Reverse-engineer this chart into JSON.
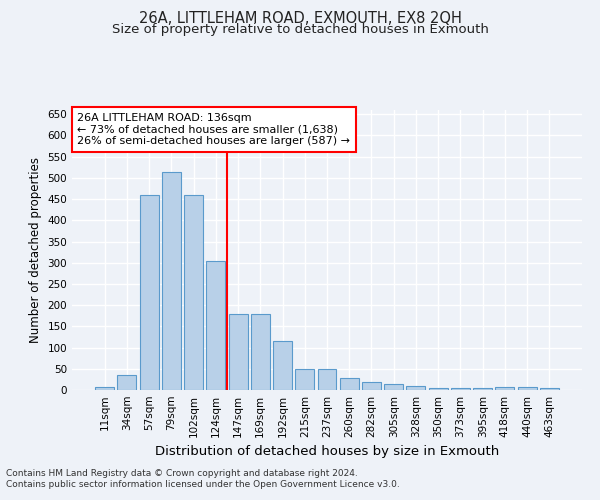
{
  "title1": "26A, LITTLEHAM ROAD, EXMOUTH, EX8 2QH",
  "title2": "Size of property relative to detached houses in Exmouth",
  "xlabel": "Distribution of detached houses by size in Exmouth",
  "ylabel": "Number of detached properties",
  "categories": [
    "11sqm",
    "34sqm",
    "57sqm",
    "79sqm",
    "102sqm",
    "124sqm",
    "147sqm",
    "169sqm",
    "192sqm",
    "215sqm",
    "237sqm",
    "260sqm",
    "282sqm",
    "305sqm",
    "328sqm",
    "350sqm",
    "373sqm",
    "395sqm",
    "418sqm",
    "440sqm",
    "463sqm"
  ],
  "values": [
    7,
    35,
    460,
    515,
    460,
    305,
    180,
    180,
    115,
    50,
    50,
    28,
    20,
    13,
    9,
    4,
    4,
    4,
    7,
    7,
    4
  ],
  "bar_color": "#b8d0e8",
  "bar_edge_color": "#5a9acc",
  "vline_x": 5.5,
  "vline_color": "red",
  "annotation_title": "26A LITTLEHAM ROAD: 136sqm",
  "annotation_line1": "← 73% of detached houses are smaller (1,638)",
  "annotation_line2": "26% of semi-detached houses are larger (587) →",
  "annotation_box_color": "#ffffff",
  "annotation_box_edge": "red",
  "ylim": [
    0,
    660
  ],
  "yticks": [
    0,
    50,
    100,
    150,
    200,
    250,
    300,
    350,
    400,
    450,
    500,
    550,
    600,
    650
  ],
  "footnote1": "Contains HM Land Registry data © Crown copyright and database right 2024.",
  "footnote2": "Contains public sector information licensed under the Open Government Licence v3.0.",
  "bg_color": "#eef2f8",
  "plot_bg_color": "#eef2f8",
  "grid_color": "#ffffff",
  "title1_fontsize": 10.5,
  "title2_fontsize": 9.5,
  "xlabel_fontsize": 9.5,
  "ylabel_fontsize": 8.5,
  "tick_fontsize": 7.5,
  "footnote_fontsize": 6.5
}
